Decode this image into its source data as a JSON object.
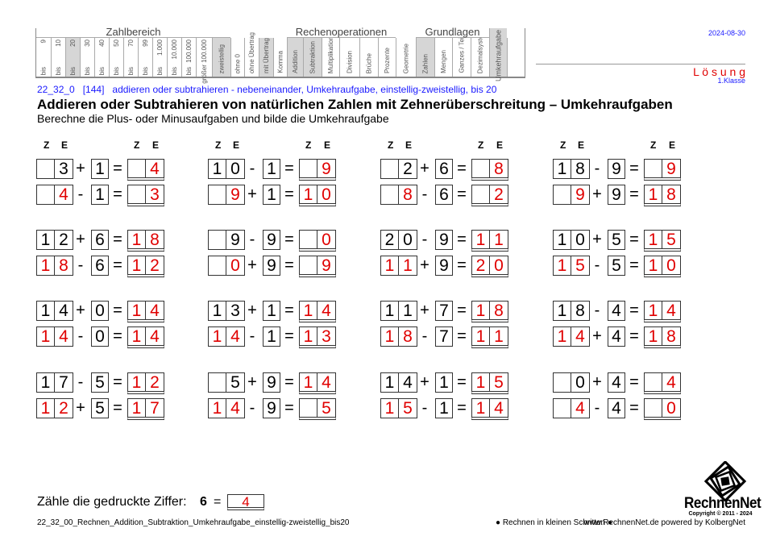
{
  "header_table": {
    "groups": [
      {
        "title": "Zahlbereich",
        "span": [
          0,
          12
        ]
      },
      {
        "title": "Rechenoperationen",
        "span": [
          17,
          22
        ]
      },
      {
        "title": "Grundlagen",
        "span": [
          24,
          27
        ]
      }
    ],
    "columns": [
      {
        "top": "9",
        "bottom": "bis",
        "highlighted": false
      },
      {
        "top": "10",
        "bottom": "bis",
        "highlighted": false
      },
      {
        "top": "20",
        "bottom": "bis",
        "highlighted": true
      },
      {
        "top": "30",
        "bottom": "bis",
        "highlighted": false
      },
      {
        "top": "40",
        "bottom": "bis",
        "highlighted": false
      },
      {
        "top": "50",
        "bottom": "bis",
        "highlighted": false
      },
      {
        "top": "70",
        "bottom": "bis",
        "highlighted": false
      },
      {
        "top": "99",
        "bottom": "bis",
        "highlighted": false
      },
      {
        "top": "1.000",
        "bottom": "bis",
        "highlighted": false
      },
      {
        "top": "10.000",
        "bottom": "bis",
        "highlighted": false
      },
      {
        "top": "100.000",
        "bottom": "bis",
        "highlighted": false
      },
      {
        "top": "größer 100.000",
        "bottom": "",
        "highlighted": false
      },
      {
        "top": "",
        "bottom": "zweistellig",
        "highlighted": true
      },
      {
        "top": "",
        "bottom": "ohne 0",
        "highlighted": false
      },
      {
        "top": "",
        "bottom": "ohne Übertrag",
        "highlighted": false
      },
      {
        "top": "",
        "bottom": "mit Übertrag",
        "highlighted": true
      },
      {
        "top": "",
        "bottom": "Komma",
        "highlighted": false
      },
      {
        "top": "",
        "bottom": "Addition",
        "highlighted": true
      },
      {
        "top": "",
        "bottom": "Subtraktion",
        "highlighted": true
      },
      {
        "top": "",
        "bottom": "Multiplikation",
        "highlighted": false
      },
      {
        "top": "",
        "bottom": "Division",
        "highlighted": false
      },
      {
        "top": "",
        "bottom": "Brüche",
        "highlighted": false
      },
      {
        "top": "",
        "bottom": "Prozente",
        "highlighted": false
      },
      {
        "top": "",
        "bottom": "Geometrie",
        "highlighted": false
      },
      {
        "top": "",
        "bottom": "Zahlen",
        "highlighted": true
      },
      {
        "top": "",
        "bottom": "Mengen",
        "highlighted": false
      },
      {
        "top": "",
        "bottom": "Ganzes / Teile",
        "highlighted": false
      },
      {
        "top": "",
        "bottom": "Dezimalsystem",
        "highlighted": false
      },
      {
        "top": "Umkehraufgabe",
        "bottom": "",
        "highlighted": true
      },
      {
        "top": "",
        "bottom": "",
        "highlighted": false
      }
    ]
  },
  "date": "2024-08-30",
  "solution_label": "L ö s u n g",
  "grade": "1.Klasse",
  "meta_line": "22_32_0   [144]   addieren oder subtrahieren - nebeneinander, Umkehraufgabe, einstellig-zweistellig, bis 20",
  "title": "Addieren oder Subtrahieren von natürlichen Zahlen mit Zehnerüberschreitung – Umkehraufgaben",
  "subtitle": "Berechne die Plus- oder Minusaufgaben und bilde die Umkehraufgabe",
  "column_header": {
    "tens": "Z",
    "ones": "E"
  },
  "colors": {
    "solution": "#e00000",
    "meta": "#1a1aff"
  },
  "problems": [
    [
      [
        "",
        "3",
        "+",
        "1",
        "",
        "4"
      ],
      [
        "",
        "4",
        "-",
        "1",
        "",
        "3"
      ]
    ],
    [
      [
        "1",
        "0",
        "-",
        "1",
        "",
        "9"
      ],
      [
        "",
        "9",
        "+",
        "1",
        "1",
        "0"
      ]
    ],
    [
      [
        "",
        "2",
        "+",
        "6",
        "",
        "8"
      ],
      [
        "",
        "8",
        "-",
        "6",
        "",
        "2"
      ]
    ],
    [
      [
        "1",
        "8",
        "-",
        "9",
        "",
        "9"
      ],
      [
        "",
        "9",
        "+",
        "9",
        "1",
        "8"
      ]
    ],
    [
      [
        "1",
        "2",
        "+",
        "6",
        "1",
        "8"
      ],
      [
        "1",
        "8",
        "-",
        "6",
        "1",
        "2"
      ]
    ],
    [
      [
        "",
        "9",
        "-",
        "9",
        "",
        "0"
      ],
      [
        "",
        "0",
        "+",
        "9",
        "",
        "9"
      ]
    ],
    [
      [
        "2",
        "0",
        "-",
        "9",
        "1",
        "1"
      ],
      [
        "1",
        "1",
        "+",
        "9",
        "2",
        "0"
      ]
    ],
    [
      [
        "1",
        "0",
        "+",
        "5",
        "1",
        "5"
      ],
      [
        "1",
        "5",
        "-",
        "5",
        "1",
        "0"
      ]
    ],
    [
      [
        "1",
        "4",
        "+",
        "0",
        "1",
        "4"
      ],
      [
        "1",
        "4",
        "-",
        "0",
        "1",
        "4"
      ]
    ],
    [
      [
        "1",
        "3",
        "+",
        "1",
        "1",
        "4"
      ],
      [
        "1",
        "4",
        "-",
        "1",
        "1",
        "3"
      ]
    ],
    [
      [
        "1",
        "1",
        "+",
        "7",
        "1",
        "8"
      ],
      [
        "1",
        "8",
        "-",
        "7",
        "1",
        "1"
      ]
    ],
    [
      [
        "1",
        "8",
        "-",
        "4",
        "1",
        "4"
      ],
      [
        "1",
        "4",
        "+",
        "4",
        "1",
        "8"
      ]
    ],
    [
      [
        "1",
        "7",
        "-",
        "5",
        "1",
        "2"
      ],
      [
        "1",
        "2",
        "+",
        "5",
        "1",
        "7"
      ]
    ],
    [
      [
        "",
        "5",
        "+",
        "9",
        "1",
        "4"
      ],
      [
        "1",
        "4",
        "-",
        "9",
        "",
        "5"
      ]
    ],
    [
      [
        "1",
        "4",
        "+",
        "1",
        "1",
        "5"
      ],
      [
        "1",
        "5",
        "-",
        "1",
        "1",
        "4"
      ]
    ],
    [
      [
        "",
        "0",
        "+",
        "4",
        "",
        "4"
      ],
      [
        "",
        "4",
        "-",
        "4",
        "",
        "0"
      ]
    ]
  ],
  "equals": "=",
  "count_task": {
    "label": "Zähle die gedruckte Ziffer:",
    "digit": "6",
    "equals": "=",
    "answer": "4"
  },
  "footer": {
    "filename": "22_32_00_Rechnen_Addition_Subtraktion_Umkehraufgabe_einstellig-zweistellig_bis20",
    "slogan": "● Rechnen in kleinen Schritten ●",
    "site": "www.RechnenNet.de powered by KolbergNet"
  },
  "logo": {
    "name": "RechnenNet",
    "copyright": "Copyright © 2011 - 2024"
  }
}
